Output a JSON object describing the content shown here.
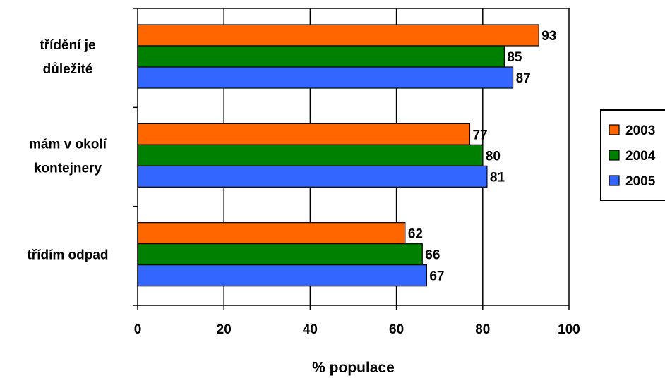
{
  "chart_data": {
    "type": "bar",
    "orientation": "horizontal",
    "categories": [
      [
        "třídění je",
        "důležité"
      ],
      [
        "mám v okolí",
        "kontejnery"
      ],
      [
        "třídím odpad"
      ]
    ],
    "series": [
      {
        "name": "2003",
        "color": "#FF6600",
        "values": [
          93,
          77,
          62
        ]
      },
      {
        "name": "2004",
        "color": "#008000",
        "values": [
          85,
          80,
          66
        ]
      },
      {
        "name": "2005",
        "color": "#3366FF",
        "values": [
          87,
          81,
          67
        ]
      }
    ],
    "xlabel": "% populace",
    "xlim": [
      0,
      100
    ],
    "xticks": [
      0,
      20,
      40,
      60,
      80,
      100
    ],
    "grid": "vertical",
    "legend": "right",
    "data_labels": true
  }
}
